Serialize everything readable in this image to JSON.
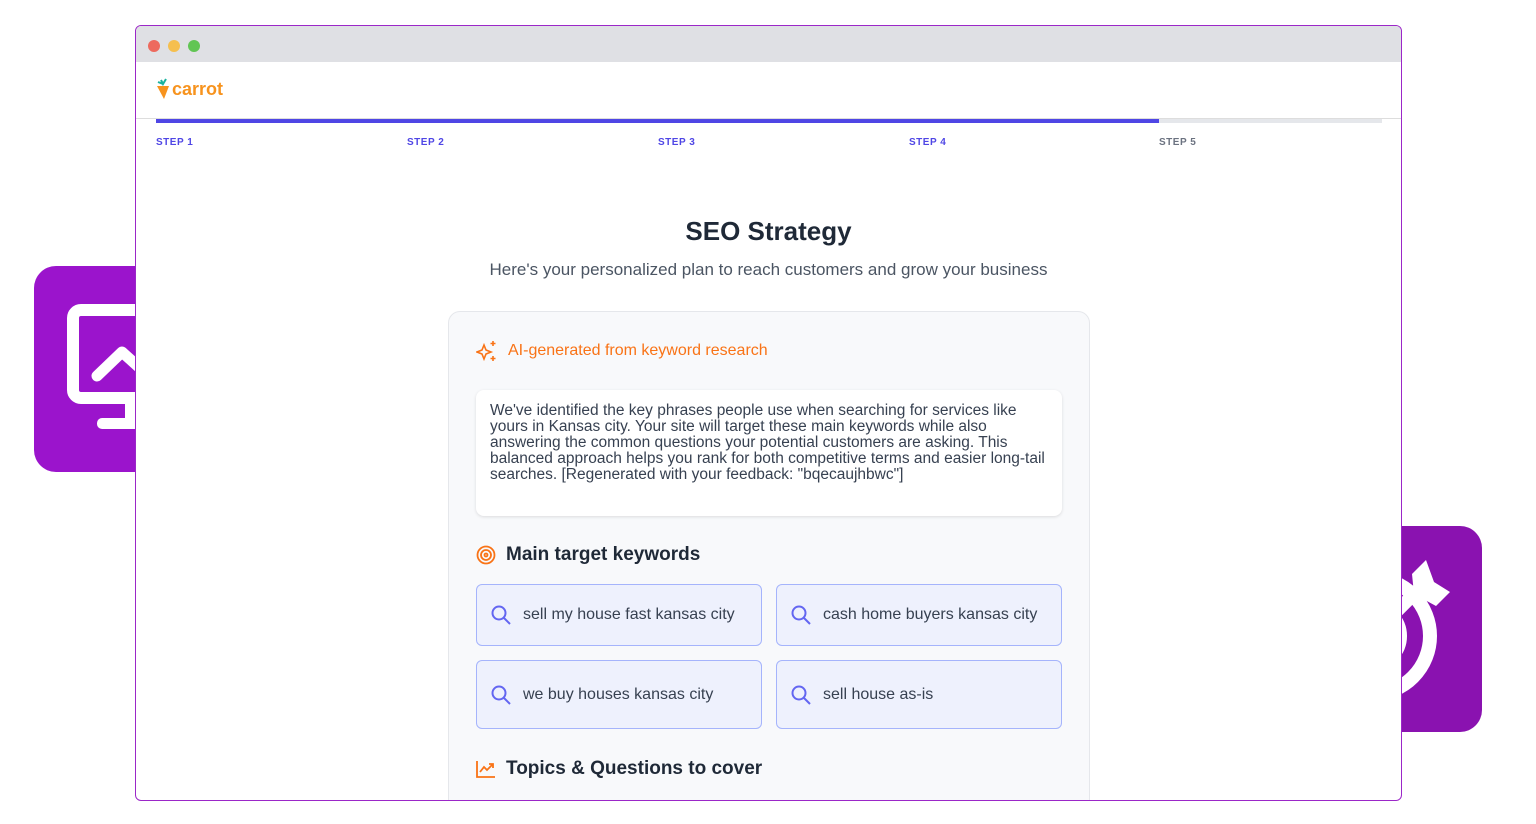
{
  "browser": {
    "dots": [
      "#ed6a5e",
      "#f5bf4f",
      "#61c554"
    ]
  },
  "header": {
    "logo": "carrot"
  },
  "progress": {
    "percent": 81.8,
    "steps": [
      "STEP 1",
      "STEP 2",
      "STEP 3",
      "STEP 4",
      "STEP 5"
    ]
  },
  "page": {
    "title": "SEO Strategy",
    "subtitle": "Here's your personalized plan to reach customers and grow your business"
  },
  "card": {
    "ai_label": "AI-generated from keyword research",
    "description": "We've identified the key phrases people use when searching for services like yours in Kansas city. Your site will target these main keywords while also answering the common questions your potential customers are asking. This balanced approach helps you rank for both competitive terms and easier long-tail searches. [Regenerated with your feedback: \"bqecaujhbwc\"]",
    "keywords_title": "Main target keywords",
    "keywords": [
      "sell my house fast kansas city",
      "cash home buyers kansas city",
      "we buy houses kansas city",
      "sell house as-is"
    ],
    "topics_title": "Topics & Questions to cover"
  },
  "colors": {
    "accent": "#4f46e5",
    "orange": "#f97316",
    "tile_left": "#9b14cc",
    "tile_right": "#8a12b0"
  }
}
